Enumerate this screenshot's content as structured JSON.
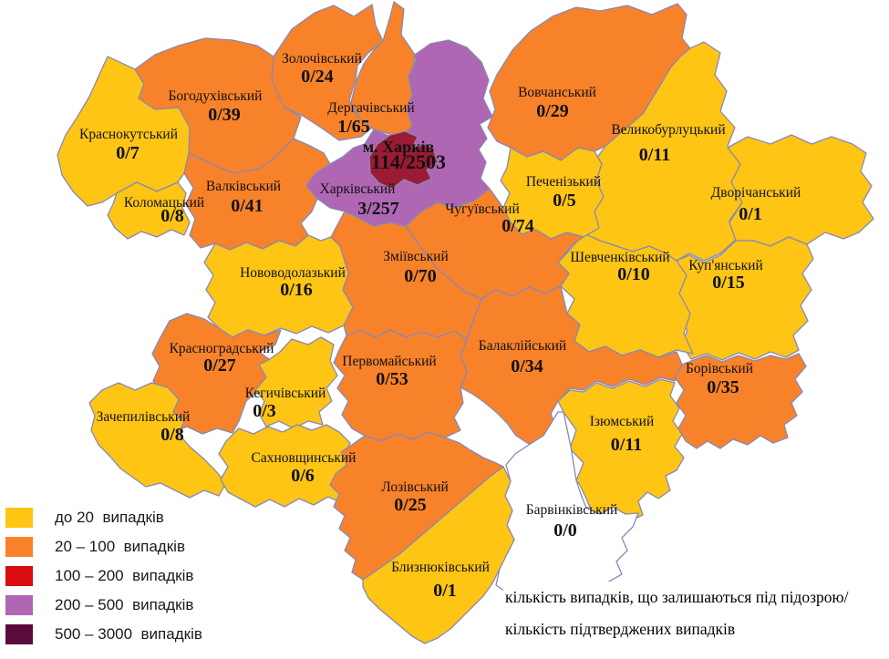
{
  "colors": {
    "lt20": "#FFC514",
    "c20_100": "#F8822A",
    "c100_200": "#D90D0D",
    "c200_500": "#AF67B3",
    "c500_3000": "#5C0A3C",
    "city": "#9A1B33",
    "none": "#FFFFFF",
    "border": "#8888B4"
  },
  "map": {
    "region": "Харківська область",
    "note_lines": [
      "кількість випадків, що залишаються під підозрою/",
      "кількість підтверджених випадків"
    ],
    "districts": [
      {
        "id": "vovchansky",
        "name": "Вовчанський",
        "value": "0/29",
        "category": "c20_100"
      },
      {
        "id": "velykoburlutsky",
        "name": "Великобурлуцький",
        "value": "0/11",
        "category": "lt20"
      },
      {
        "id": "dvorichansky",
        "name": "Дворічанський",
        "value": "0/1",
        "category": "lt20"
      },
      {
        "id": "kupiansky",
        "name": "Куп'янський",
        "value": "0/15",
        "category": "lt20"
      },
      {
        "id": "shevchenkivsky",
        "name": "Шевченківський",
        "value": "0/10",
        "category": "lt20"
      },
      {
        "id": "pechenizky",
        "name": "Печенізький",
        "value": "0/5",
        "category": "lt20"
      },
      {
        "id": "chuhuivsky",
        "name": "Чугуївський",
        "value": "0/74",
        "category": "c20_100"
      },
      {
        "id": "zmiivsky",
        "name": "Зміївський",
        "value": "0/70",
        "category": "c20_100"
      },
      {
        "id": "balakliysky",
        "name": "Балаклійський",
        "value": "0/34",
        "category": "c20_100"
      },
      {
        "id": "izyumsky",
        "name": "Ізюмський",
        "value": "0/11",
        "category": "lt20"
      },
      {
        "id": "borivsky",
        "name": "Борівський",
        "value": "0/35",
        "category": "c20_100"
      },
      {
        "id": "barvinkivsky",
        "name": "Барвінківський",
        "value": "0/0",
        "category": "none"
      },
      {
        "id": "zolochivsky",
        "name": "Золочівський",
        "value": "0/24",
        "category": "c20_100"
      },
      {
        "id": "bogodukhivsky",
        "name": "Богодухівський",
        "value": "0/39",
        "category": "c20_100"
      },
      {
        "id": "krasnokutsky",
        "name": "Краснокутський",
        "value": "0/7",
        "category": "lt20"
      },
      {
        "id": "kolomatsky",
        "name": "Коломацький",
        "value": "0/8",
        "category": "lt20"
      },
      {
        "id": "valkivsky",
        "name": "Валківський",
        "value": "0/41",
        "category": "c20_100"
      },
      {
        "id": "dergachivsky",
        "name": "Дергачівський",
        "value": "1/65",
        "category": "c20_100"
      },
      {
        "id": "novovodolazky",
        "name": "Нововодолазький",
        "value": "0/16",
        "category": "lt20"
      },
      {
        "id": "krasnohradsky",
        "name": "Красноградський",
        "value": "0/27",
        "category": "c20_100"
      },
      {
        "id": "kehychivsky",
        "name": "Кегичівський",
        "value": "0/3",
        "category": "lt20"
      },
      {
        "id": "zachepylivsky",
        "name": "Зачепилівський",
        "value": "0/8",
        "category": "lt20"
      },
      {
        "id": "sakhnovshchynsky",
        "name": "Сахновщинський",
        "value": "0/6",
        "category": "lt20"
      },
      {
        "id": "pervomaisky",
        "name": "Первомайський",
        "value": "0/53",
        "category": "c20_100"
      },
      {
        "id": "lozivsky",
        "name": "Лозівський",
        "value": "0/25",
        "category": "c20_100"
      },
      {
        "id": "blyzniukivsky",
        "name": "Близнюківський",
        "value": "0/1",
        "category": "lt20"
      },
      {
        "id": "kharkivsky",
        "name": "Харківський",
        "value": "3/257",
        "category": "c200_500"
      },
      {
        "id": "kharkiv_city",
        "name": "м. Харків",
        "value": "114/2503",
        "category": "city"
      }
    ]
  },
  "legend": {
    "items": [
      {
        "label": "до 20  випадків",
        "category": "lt20"
      },
      {
        "label": "20 – 100  випадків",
        "category": "c20_100"
      },
      {
        "label": "100 – 200  випадків",
        "category": "c100_200"
      },
      {
        "label": "200 – 500  випадків",
        "category": "c200_500"
      },
      {
        "label": "500 – 3000  випадків",
        "category": "c500_3000"
      }
    ]
  }
}
